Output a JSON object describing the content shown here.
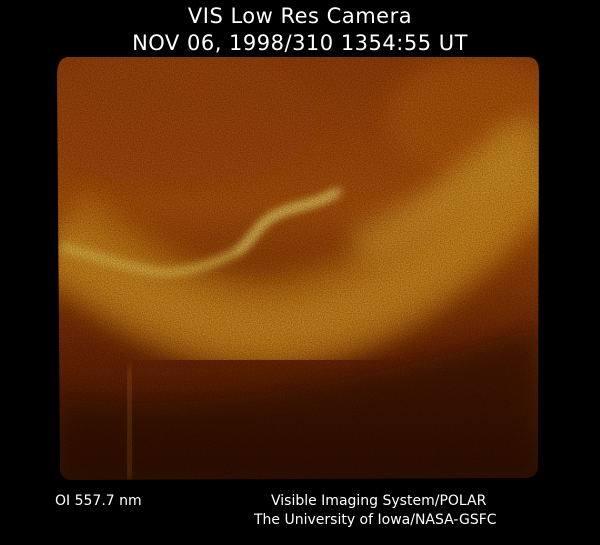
{
  "header": {
    "line1": "VIS Low Res Camera",
    "line2": "NOV 06, 1998/310 1354:55 UT"
  },
  "footer": {
    "filter": "OI  557.7 nm",
    "credit_line1": "Visible Imaging System/POLAR",
    "credit_line2": "The University of Iowa/NASA-GSFC"
  },
  "image": {
    "subject": "auroral-oval",
    "colors": {
      "background": "#000000",
      "dark": "#3a1200",
      "mid": "#b04a06",
      "bright": "#f0a020",
      "peak": "#ffd860"
    }
  }
}
